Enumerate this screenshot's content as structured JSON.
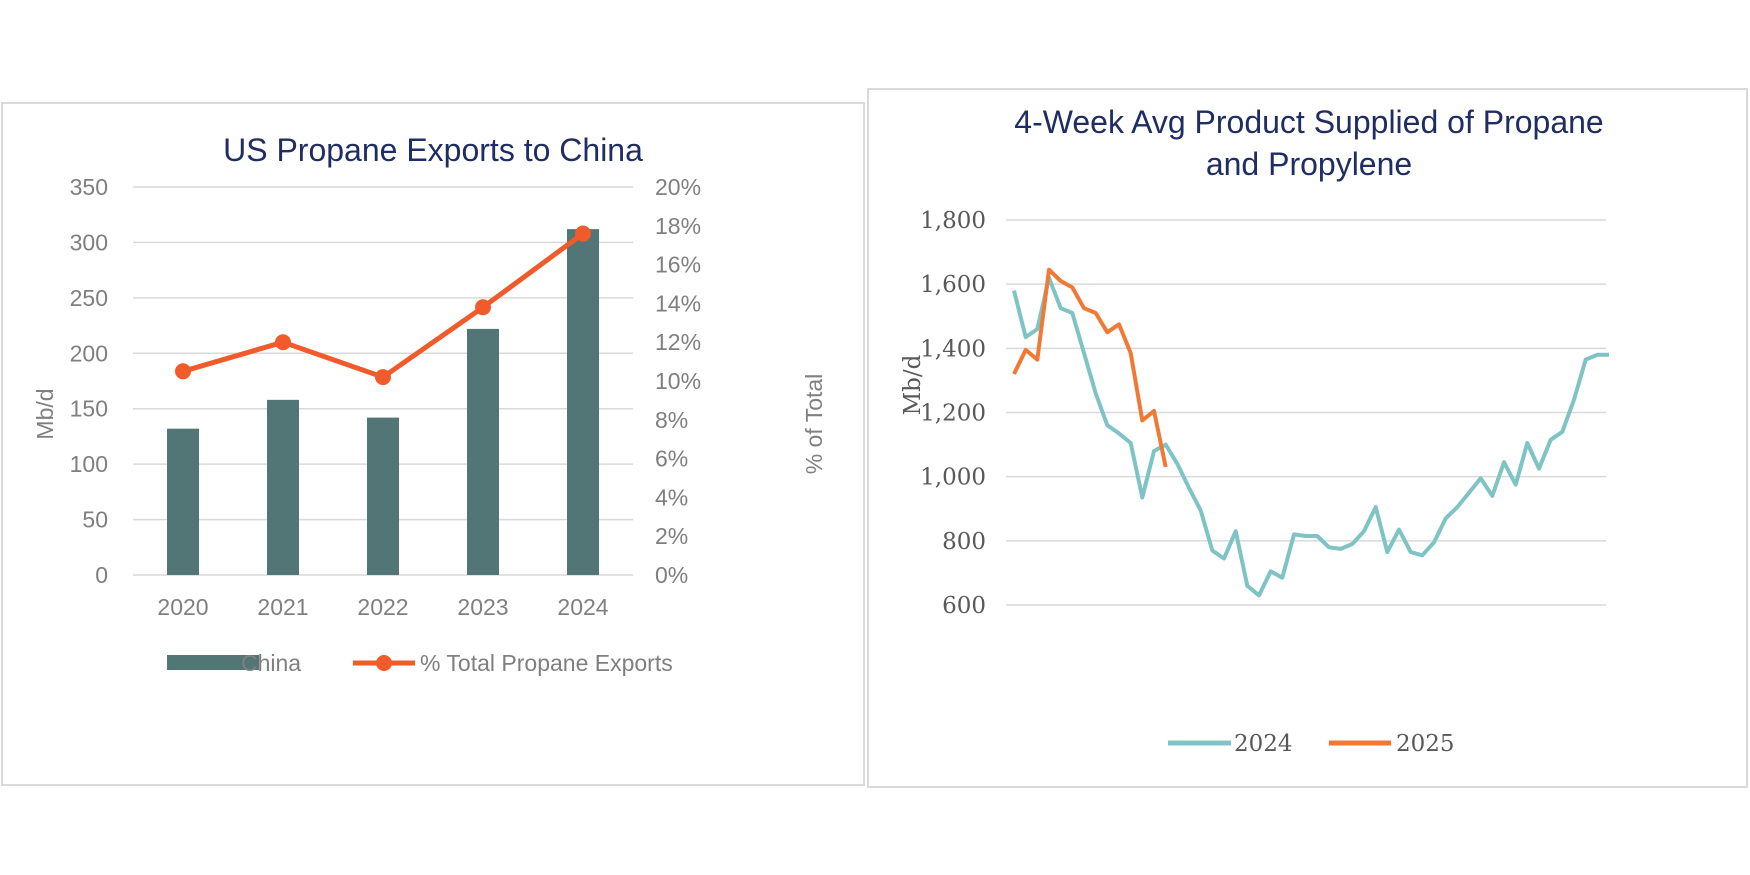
{
  "chart_data": [
    {
      "type": "bar",
      "title": "US Propane Exports to China",
      "categories": [
        "2020",
        "2021",
        "2022",
        "2023",
        "2024"
      ],
      "ylabel": "Mb/d",
      "ylabel2": "% of Total",
      "ylim": [
        0,
        350
      ],
      "ylim2": [
        0,
        20
      ],
      "yticks": [
        "0",
        "50",
        "100",
        "150",
        "200",
        "250",
        "300",
        "350"
      ],
      "yticks2": [
        "0%",
        "2%",
        "4%",
        "6%",
        "8%",
        "10%",
        "12%",
        "14%",
        "16%",
        "18%",
        "20%"
      ],
      "grid": true,
      "legend_position": "bottom",
      "series": [
        {
          "name": "China",
          "type": "bar",
          "axis": "left",
          "color": "#527575",
          "values": [
            132,
            158,
            142,
            222,
            312
          ]
        },
        {
          "name": "% Total Propane Exports",
          "type": "line",
          "axis": "right",
          "color": "#f15a2b",
          "values": [
            10.5,
            12.0,
            10.2,
            13.8,
            17.6
          ]
        }
      ]
    },
    {
      "type": "line",
      "title_lines": [
        "4-Week Avg Product Supplied of Propane",
        "and Propylene"
      ],
      "ylabel": "Mb/d",
      "ylim": [
        600,
        1800
      ],
      "yticks": [
        "600",
        "800",
        "1,000",
        "1,200",
        "1,400",
        "1,600",
        "1,800"
      ],
      "grid": true,
      "legend_position": "bottom",
      "x_count": 52,
      "series": [
        {
          "name": "2024",
          "color": "#7fc4c4",
          "values": [
            1580,
            1435,
            1460,
            1620,
            1525,
            1510,
            1385,
            1260,
            1160,
            1135,
            1105,
            935,
            1080,
            1100,
            1040,
            965,
            895,
            770,
            745,
            830,
            660,
            630,
            705,
            685,
            820,
            815,
            815,
            780,
            775,
            790,
            830,
            905,
            765,
            835,
            765,
            755,
            795,
            870,
            905,
            950,
            995,
            940,
            1045,
            975,
            1105,
            1025,
            1115,
            1140,
            1240,
            1365,
            1380,
            1380
          ]
        },
        {
          "name": "2025",
          "color": "#f07a35",
          "values": [
            1320,
            1395,
            1365,
            1645,
            1610,
            1590,
            1525,
            1510,
            1450,
            1475,
            1385,
            1175,
            1205,
            1030
          ]
        }
      ]
    }
  ]
}
